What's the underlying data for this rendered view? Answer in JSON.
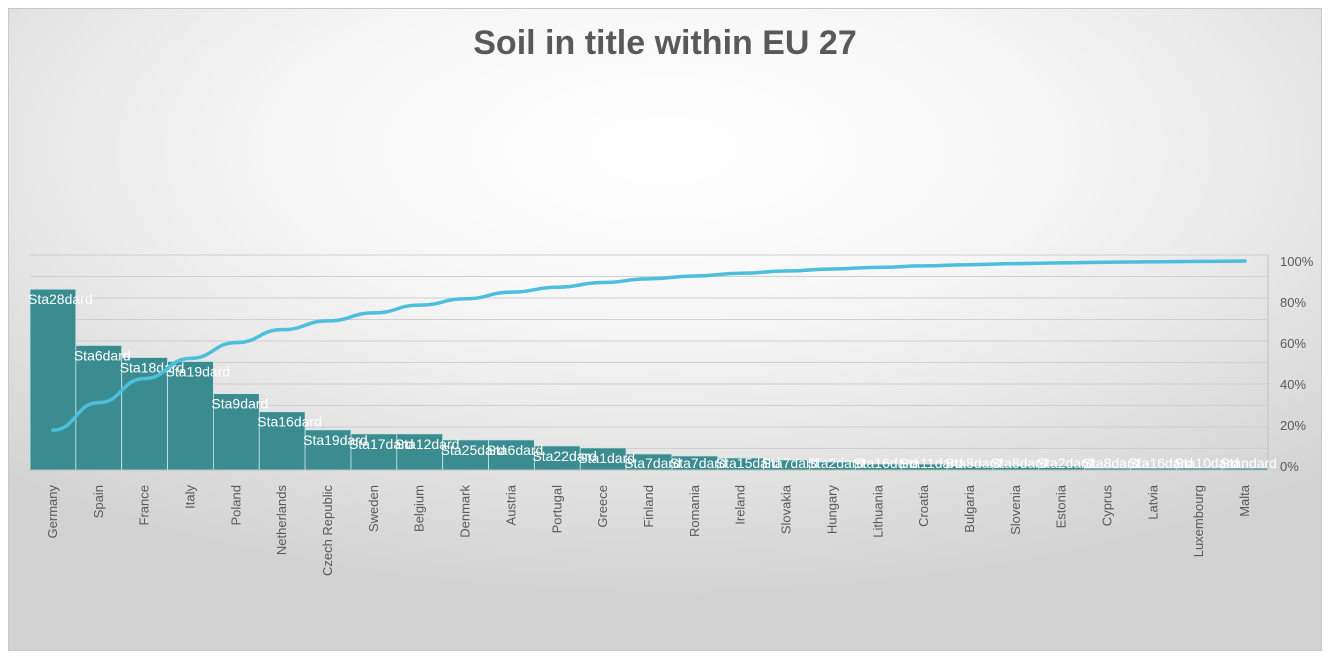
{
  "chart_data": {
    "type": "bar",
    "title": "Soil in title within EU 27",
    "categories": [
      "Germany",
      "Spain",
      "France",
      "Italy",
      "Poland",
      "Netherlands",
      "Czech Republic",
      "Sweden",
      "Belgium",
      "Denmark",
      "Austria",
      "Portugal",
      "Greece",
      "Finland",
      "Romania",
      "Ireland",
      "Slovakia",
      "Hungary",
      "Lithuania",
      "Croatia",
      "Bulgaria",
      "Slovenia",
      "Estonia",
      "Cyprus",
      "Latvia",
      "Luxembourg",
      "Malta"
    ],
    "series": [
      {
        "type": "bar",
        "color": "#3b8c91",
        "values": [
          90,
          62,
          56,
          54,
          38,
          29,
          20,
          18,
          18,
          15,
          15,
          12,
          11,
          8,
          7,
          6,
          5,
          4,
          3,
          3,
          2,
          2,
          2,
          1,
          1,
          1,
          1
        ],
        "data_labels": [
          "Sta28dard",
          "Sta6dard",
          "Sta18dard",
          "Sta19dard",
          "Sta9dard",
          "Sta16dard",
          "Sta19dard",
          "Sta17dard",
          "Sta12dard",
          "Sta25dard",
          "Sta6dard",
          "Sta22dard",
          "Sta1dard",
          "Sta7dard",
          "Sta7dard",
          "Sta15dard",
          "Sta7dard",
          "Sta2dard",
          "Sta16dard",
          "Sta11dard",
          "Sta8dard",
          "Sta8dard",
          "Sta2dard",
          "Sta8dard",
          "Sta16dard",
          "Sta10dard",
          "Standard"
        ]
      },
      {
        "type": "line",
        "axis": "secondary",
        "color": "#4bbfdc",
        "values": [
          17.5,
          30.9,
          42.7,
          52.5,
          60.2,
          66.5,
          70.8,
          74.7,
          78.5,
          81.6,
          84.8,
          87.2,
          89.5,
          91.3,
          92.7,
          94.0,
          95.1,
          96.1,
          96.9,
          97.6,
          98.2,
          98.7,
          99.1,
          99.4,
          99.6,
          99.8,
          100.0
        ]
      }
    ],
    "y2_ticks": [
      "100%",
      "80%",
      "60%",
      "40%",
      "20%",
      "0%"
    ],
    "y2lim": [
      0,
      100
    ],
    "xlabel": "",
    "ylabel": "",
    "grid": true,
    "legend": "none"
  }
}
